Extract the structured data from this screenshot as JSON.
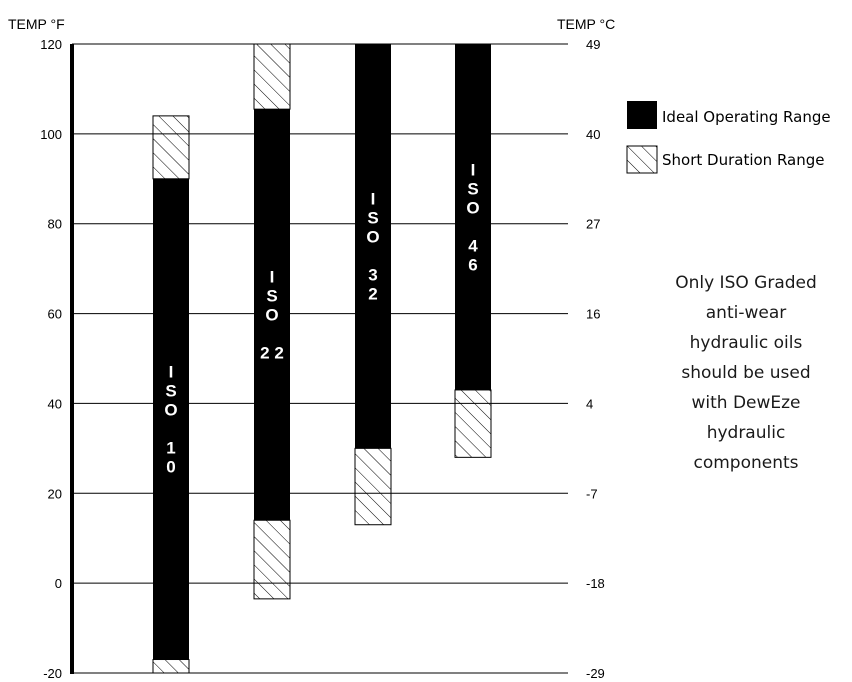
{
  "chart_data": {
    "type": "bar",
    "left_axis_label": "TEMP °F",
    "right_axis_label": "TEMP °C",
    "ylim": [
      -20,
      120
    ],
    "y_ticks_f": [
      120,
      100,
      80,
      60,
      40,
      20,
      0,
      -20
    ],
    "y_ticks_c": [
      "49",
      "40",
      "27",
      "16",
      "4",
      "-7",
      "-18",
      "-29"
    ],
    "grid": true,
    "legend_position": "right",
    "legend": {
      "ideal": "Ideal Operating Range",
      "short": "Short Duration Range"
    },
    "series": [
      {
        "name": "ISO 10",
        "label_lines": [
          "I",
          "S",
          "O",
          "",
          "1",
          "0"
        ],
        "ideal": [
          -17,
          90
        ],
        "short_low": [
          -20,
          -17
        ],
        "short_high": [
          90,
          104
        ]
      },
      {
        "name": "ISO 22",
        "label_lines": [
          "I",
          "S",
          "O",
          "",
          "2 2"
        ],
        "ideal": [
          14,
          105.5
        ],
        "short_low": [
          -3.5,
          14
        ],
        "short_high": [
          105.5,
          120
        ]
      },
      {
        "name": "ISO 32",
        "label_lines": [
          "I",
          "S",
          "O",
          "",
          "3",
          "2"
        ],
        "ideal": [
          30,
          120
        ],
        "short_low": [
          13,
          30
        ],
        "short_high": null
      },
      {
        "name": "ISO 46",
        "label_lines": [
          "I",
          "S",
          "O",
          "",
          "4",
          "6"
        ],
        "ideal": [
          43,
          120
        ],
        "short_low": [
          28,
          43
        ],
        "short_high": null
      }
    ]
  },
  "note_lines": [
    "Only ISO Graded",
    "anti-wear",
    "hydraulic oils",
    "should be used",
    "with DewEze",
    "hydraulic",
    "components"
  ],
  "colors": {
    "ideal": "#000000",
    "grid": "#000000",
    "note": "#1a1a1a"
  }
}
